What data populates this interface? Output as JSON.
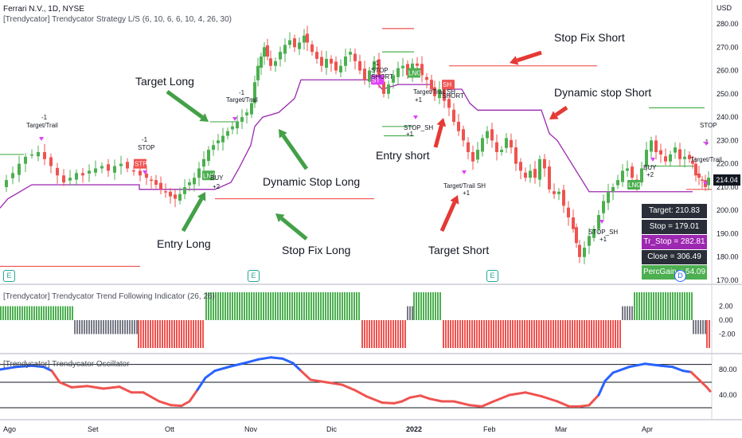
{
  "header": {
    "symbol_line": "Ferrari N.V., 1D, NYSE",
    "strategy_line": "[Trendycator] Trendycator Strategy L/S (6, 10, 6, 6, 10, 4, 26, 30)",
    "currency": "USD"
  },
  "panels": {
    "trend_title": "[Trendycator] Trendycator Trend Following Indicator (26, 26)",
    "osc_title": "[Trendycator] Trendycator Oscillator"
  },
  "annotations": {
    "target_long": "Target Long",
    "entry_long": "Entry Long",
    "dynamic_stop_long": "Dynamic Stop Long",
    "stop_fix_long": "Stop Fix Long",
    "stop_fix_short": "Stop Fix Short",
    "dynamic_stop_short": "Dynamic stop Short",
    "entry_short": "Entry short",
    "target_short": "Target Short"
  },
  "info_box": {
    "target": "Target: 210.83",
    "stop": "Stop = 179.01",
    "tr_stop": "Tr_Stop = 282.81",
    "close": "Close = 306.49",
    "perc_gain": "PercGain = 54.09"
  },
  "price_tag": "214.04",
  "badges": {
    "e": "E",
    "d": "D"
  },
  "colors": {
    "bull": "#4caf50",
    "bear": "#ef5350",
    "neutral": "#787b86",
    "trail": "#9c27b0",
    "osc_up": "#2962ff",
    "osc_down": "#ef5350",
    "target_line": "#4caf50",
    "stop_line": "#ef5350",
    "arrow": "#43a047",
    "arrow_short": "#e53935"
  },
  "chart_data": [
    {
      "type": "candlestick",
      "title": "Ferrari N.V., 1D, NYSE",
      "y_axis": {
        "ticks": [
          170,
          180,
          190,
          200,
          210,
          220,
          230,
          240,
          250,
          260,
          270,
          280
        ],
        "unit": "USD",
        "range": [
          168,
          284
        ]
      },
      "x_axis": {
        "ticks": [
          "Ago",
          "Set",
          "Ott",
          "Nov",
          "Dic",
          "2022",
          "Feb",
          "Mar",
          "Apr"
        ]
      },
      "close_path": [
        [
          0,
          210
        ],
        [
          8,
          213
        ],
        [
          16,
          216
        ],
        [
          24,
          220
        ],
        [
          32,
          223
        ],
        [
          40,
          224
        ],
        [
          48,
          225
        ],
        [
          56,
          222
        ],
        [
          64,
          219
        ],
        [
          72,
          215
        ],
        [
          80,
          212
        ],
        [
          88,
          214
        ],
        [
          96,
          216
        ],
        [
          104,
          215
        ],
        [
          112,
          217
        ],
        [
          120,
          218
        ],
        [
          128,
          219
        ],
        [
          136,
          217
        ],
        [
          144,
          219
        ],
        [
          152,
          220
        ],
        [
          160,
          218
        ],
        [
          168,
          217
        ],
        [
          176,
          215
        ],
        [
          184,
          214
        ],
        [
          190,
          213
        ],
        [
          196,
          211
        ],
        [
          202,
          209
        ],
        [
          208,
          208
        ],
        [
          214,
          206
        ],
        [
          220,
          205
        ],
        [
          226,
          207
        ],
        [
          232,
          210
        ],
        [
          238,
          212
        ],
        [
          244,
          214
        ],
        [
          250,
          218
        ],
        [
          256,
          222
        ],
        [
          262,
          226
        ],
        [
          268,
          228
        ],
        [
          274,
          230
        ],
        [
          280,
          232
        ],
        [
          286,
          234
        ],
        [
          292,
          236
        ],
        [
          298,
          238
        ],
        [
          304,
          240
        ],
        [
          310,
          242
        ],
        [
          316,
          246
        ],
        [
          320,
          255
        ],
        [
          324,
          262
        ],
        [
          328,
          266
        ],
        [
          332,
          270
        ],
        [
          336,
          266
        ],
        [
          340,
          262
        ],
        [
          346,
          264
        ],
        [
          352,
          268
        ],
        [
          358,
          271
        ],
        [
          364,
          273
        ],
        [
          370,
          270
        ],
        [
          376,
          272
        ],
        [
          382,
          275
        ],
        [
          386,
          272
        ],
        [
          392,
          268
        ],
        [
          398,
          265
        ],
        [
          404,
          262
        ],
        [
          410,
          265
        ],
        [
          416,
          263
        ],
        [
          422,
          260
        ],
        [
          428,
          262
        ],
        [
          434,
          266
        ],
        [
          440,
          268
        ],
        [
          446,
          264
        ],
        [
          452,
          260
        ],
        [
          458,
          256
        ],
        [
          464,
          260
        ],
        [
          470,
          264
        ],
        [
          476,
          256
        ],
        [
          482,
          250
        ],
        [
          488,
          254
        ],
        [
          494,
          258
        ],
        [
          500,
          261
        ],
        [
          506,
          262
        ],
        [
          512,
          258
        ],
        [
          518,
          263
        ],
        [
          524,
          262
        ],
        [
          530,
          258
        ],
        [
          536,
          256
        ],
        [
          542,
          252
        ],
        [
          546,
          249
        ],
        [
          552,
          252
        ],
        [
          558,
          247
        ],
        [
          564,
          244
        ],
        [
          570,
          238
        ],
        [
          576,
          234
        ],
        [
          582,
          230
        ],
        [
          588,
          225
        ],
        [
          594,
          221
        ],
        [
          600,
          226
        ],
        [
          606,
          231
        ],
        [
          612,
          234
        ],
        [
          618,
          230
        ],
        [
          624,
          225
        ],
        [
          630,
          226
        ],
        [
          636,
          231
        ],
        [
          642,
          227
        ],
        [
          648,
          220
        ],
        [
          654,
          217
        ],
        [
          660,
          214
        ],
        [
          666,
          217
        ],
        [
          672,
          214
        ],
        [
          678,
          222
        ],
        [
          684,
          218
        ],
        [
          690,
          209
        ],
        [
          696,
          207
        ],
        [
          702,
          208
        ],
        [
          708,
          202
        ],
        [
          714,
          197
        ],
        [
          720,
          192
        ],
        [
          724,
          186
        ],
        [
          728,
          180
        ],
        [
          734,
          184
        ],
        [
          740,
          189
        ],
        [
          746,
          192
        ],
        [
          752,
          198
        ],
        [
          758,
          204
        ],
        [
          764,
          208
        ],
        [
          770,
          210
        ],
        [
          776,
          213
        ],
        [
          782,
          217
        ],
        [
          788,
          218
        ],
        [
          794,
          214
        ],
        [
          800,
          212
        ],
        [
          806,
          218
        ],
        [
          812,
          226
        ],
        [
          818,
          230
        ],
        [
          824,
          225
        ],
        [
          830,
          224
        ],
        [
          836,
          221
        ],
        [
          842,
          224
        ],
        [
          848,
          227
        ],
        [
          854,
          222
        ],
        [
          860,
          223
        ],
        [
          866,
          222
        ],
        [
          870,
          220
        ],
        [
          874,
          215
        ],
        [
          878,
          214
        ],
        [
          882,
          213
        ],
        [
          886,
          210
        ],
        [
          890,
          214
        ]
      ],
      "series": [
        {
          "name": "Target Long",
          "values": [
            [
              264,
              238
            ],
            [
              300,
              238
            ]
          ]
        },
        {
          "name": "Stop Fix Long",
          "values": [
            [
              270,
              205
            ],
            [
              470,
              205
            ]
          ]
        },
        {
          "name": "Stop Fix Short",
          "values": [
            [
              564,
              262
            ],
            [
              750,
              262
            ]
          ]
        },
        {
          "name": "Target Short",
          "values": [
            [
              480,
              236
            ],
            [
              520,
              236
            ]
          ]
        },
        {
          "name": "Dynamic Stop Long",
          "values": [
            [
              0,
              201
            ],
            [
              10,
              205
            ],
            [
              30,
              209
            ],
            [
              40,
              211
            ],
            [
              175,
              211
            ],
            [
              175,
              209
            ],
            [
              270,
              209
            ],
            [
              290,
              212
            ],
            [
              300,
              218
            ],
            [
              315,
              228
            ],
            [
              320,
              236
            ],
            [
              330,
              240
            ],
            [
              350,
              242
            ],
            [
              370,
              248
            ],
            [
              378,
              256
            ],
            [
              470,
              256
            ],
            [
              480,
              252
            ],
            [
              500,
              254
            ],
            [
              540,
              254
            ],
            [
              545,
              252
            ]
          ]
        },
        {
          "name": "Dynamic stop Short",
          "values": [
            [
              560,
              252
            ],
            [
              580,
              252
            ],
            [
              590,
              246
            ],
            [
              600,
              243
            ],
            [
              680,
              243
            ],
            [
              690,
              233
            ],
            [
              700,
              230
            ],
            [
              740,
              208
            ],
            [
              760,
              208
            ],
            [
              860,
              208
            ],
            [
              870,
              208
            ]
          ]
        }
      ]
    },
    {
      "type": "bar",
      "title": "[Trendycator] Trendycator Trend Following Indicator (26, 26)",
      "y_axis": {
        "ticks": [
          2.0,
          0.0,
          -2.0
        ]
      },
      "segments": [
        {
          "state": "bull",
          "value": 1,
          "x": [
            0,
            92
          ]
        },
        {
          "state": "neutral",
          "value": -1,
          "x": [
            93,
            172
          ]
        },
        {
          "state": "bear",
          "value": -2,
          "x": [
            173,
            256
          ]
        },
        {
          "state": "bull",
          "value": 2,
          "x": [
            258,
            452
          ]
        },
        {
          "state": "bear",
          "value": -2,
          "x": [
            454,
            510
          ]
        },
        {
          "state": "neutral",
          "value": 1,
          "x": [
            511,
            518
          ]
        },
        {
          "state": "bull",
          "value": 2,
          "x": [
            519,
            553
          ]
        },
        {
          "state": "bear",
          "value": -2,
          "x": [
            556,
            780
          ]
        },
        {
          "state": "neutral",
          "value": 1,
          "x": [
            781,
            794
          ]
        },
        {
          "state": "bull",
          "value": 2,
          "x": [
            796,
            868
          ]
        },
        {
          "state": "neutral",
          "value": -1,
          "x": [
            870,
            886
          ]
        },
        {
          "state": "bear",
          "value": -2,
          "x": [
            887,
            892
          ]
        }
      ]
    },
    {
      "type": "line",
      "title": "[Trendycator] Trendycator Oscillator",
      "y_axis": {
        "ticks": [
          80,
          40
        ],
        "levels": [
          88,
          60,
          20
        ]
      },
      "values": [
        [
          0,
          80
        ],
        [
          20,
          84
        ],
        [
          40,
          86
        ],
        [
          55,
          84
        ],
        [
          65,
          78
        ],
        [
          75,
          60
        ],
        [
          90,
          52
        ],
        [
          110,
          54
        ],
        [
          130,
          50
        ],
        [
          150,
          53
        ],
        [
          165,
          44
        ],
        [
          180,
          44
        ],
        [
          200,
          30
        ],
        [
          215,
          24
        ],
        [
          228,
          23
        ],
        [
          238,
          30
        ],
        [
          248,
          48
        ],
        [
          258,
          67
        ],
        [
          270,
          78
        ],
        [
          290,
          85
        ],
        [
          310,
          91
        ],
        [
          325,
          96
        ],
        [
          340,
          99
        ],
        [
          355,
          97
        ],
        [
          368,
          90
        ],
        [
          378,
          78
        ],
        [
          390,
          64
        ],
        [
          410,
          60
        ],
        [
          430,
          56
        ],
        [
          445,
          48
        ],
        [
          460,
          38
        ],
        [
          480,
          28
        ],
        [
          495,
          27
        ],
        [
          505,
          30
        ],
        [
          515,
          36
        ],
        [
          528,
          39
        ],
        [
          540,
          34
        ],
        [
          555,
          30
        ],
        [
          570,
          30
        ],
        [
          590,
          24
        ],
        [
          605,
          22
        ],
        [
          620,
          30
        ],
        [
          640,
          40
        ],
        [
          660,
          44
        ],
        [
          680,
          38
        ],
        [
          700,
          30
        ],
        [
          715,
          22
        ],
        [
          728,
          22
        ],
        [
          740,
          24
        ],
        [
          752,
          40
        ],
        [
          760,
          62
        ],
        [
          770,
          75
        ],
        [
          790,
          84
        ],
        [
          810,
          89
        ],
        [
          830,
          86
        ],
        [
          845,
          84
        ],
        [
          858,
          78
        ],
        [
          868,
          76
        ],
        [
          878,
          64
        ],
        [
          888,
          52
        ],
        [
          892,
          46
        ]
      ]
    }
  ]
}
